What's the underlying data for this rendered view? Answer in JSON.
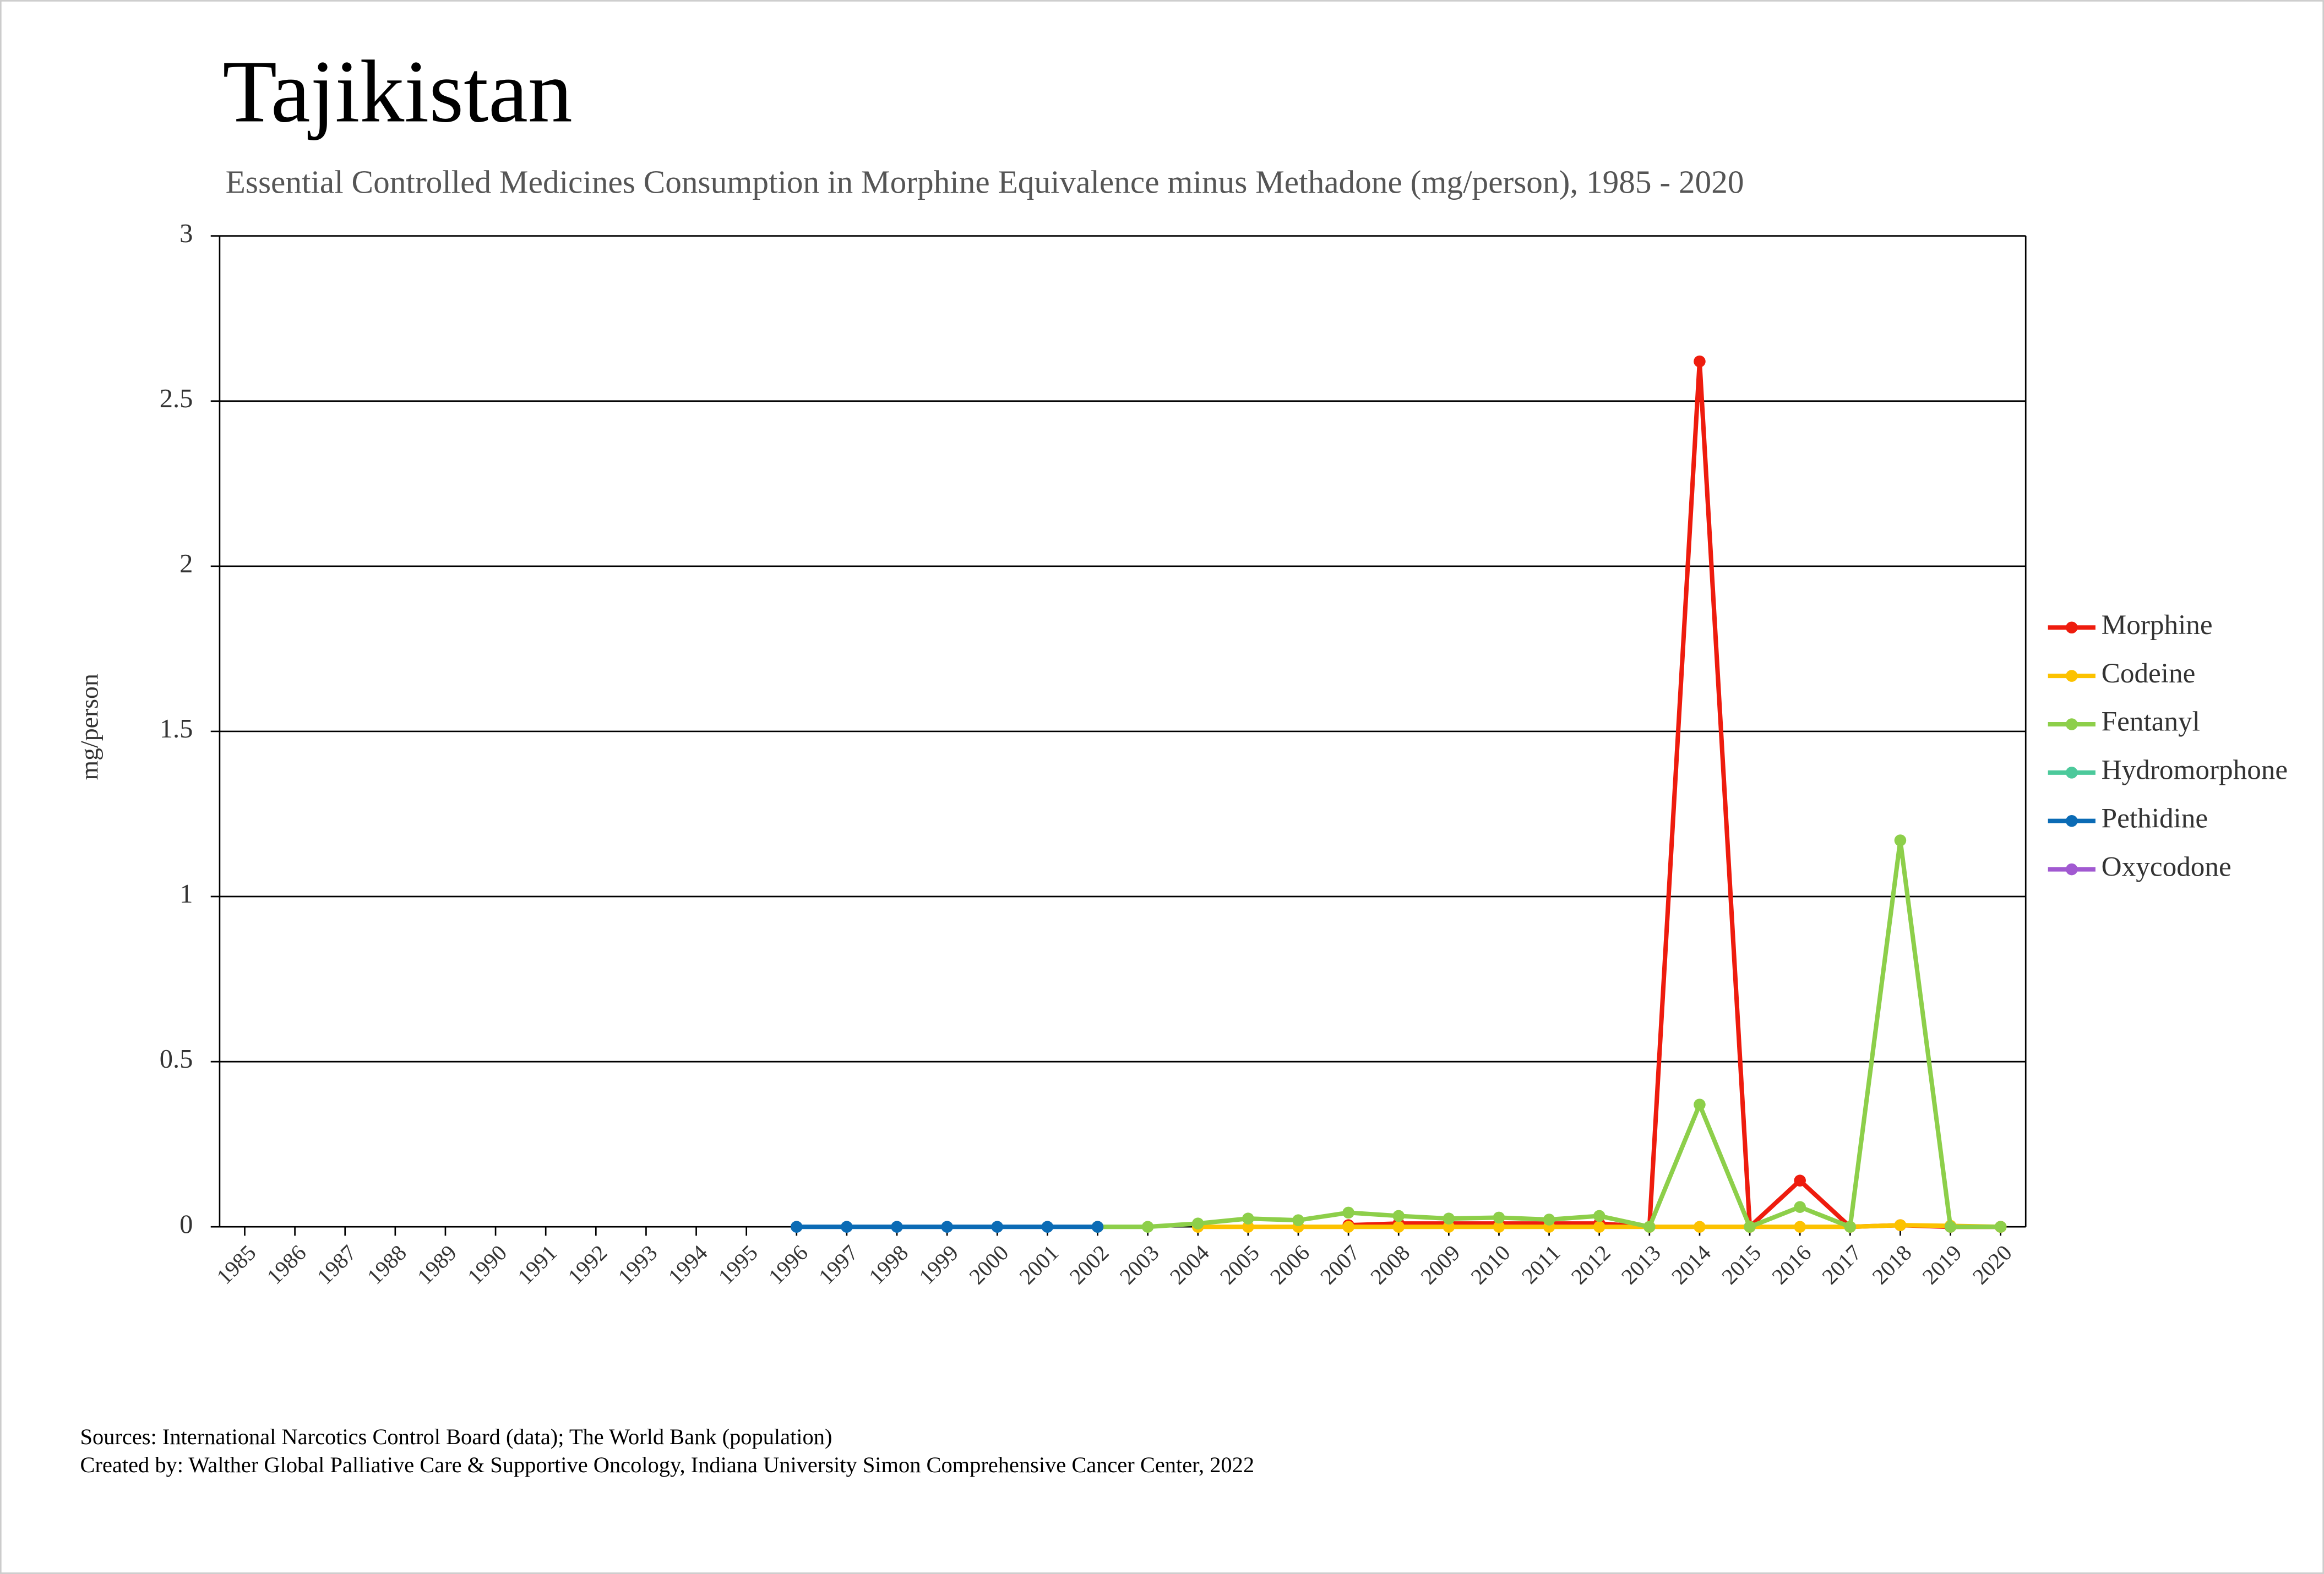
{
  "chart_data": {
    "type": "line",
    "title": "Tajikistan",
    "subtitle": "Essential Controlled Medicines Consumption in Morphine Equivalence minus Methadone (mg/person), 1985 - 2020",
    "y_label": "mg/person",
    "footer": [
      "Sources: International Narcotics Control Board (data); The World Bank (population)",
      "Created by: Walther Global Palliative Care & Supportive Oncology, Indiana University Simon Comprehensive Cancer Center, 2022"
    ],
    "categories": [
      "1985",
      "1986",
      "1987",
      "1988",
      "1989",
      "1990",
      "1991",
      "1992",
      "1993",
      "1994",
      "1995",
      "1996",
      "1997",
      "1998",
      "1999",
      "2000",
      "2001",
      "2002",
      "2003",
      "2004",
      "2005",
      "2006",
      "2007",
      "2008",
      "2009",
      "2010",
      "2011",
      "2012",
      "2013",
      "2014",
      "2015",
      "2016",
      "2017",
      "2018",
      "2019",
      "2020"
    ],
    "series": [
      {
        "name": "Morphine",
        "color": "#ee1c0e",
        "values": [
          null,
          null,
          null,
          null,
          null,
          null,
          null,
          null,
          null,
          null,
          null,
          null,
          null,
          null,
          null,
          null,
          null,
          null,
          null,
          null,
          null,
          null,
          0.005,
          0.01,
          0.01,
          0.01,
          0.01,
          0.01,
          0,
          2.62,
          0,
          0.14,
          0,
          0.005,
          0,
          0
        ]
      },
      {
        "name": "Codeine",
        "color": "#fcc200",
        "values": [
          null,
          null,
          null,
          null,
          null,
          null,
          null,
          null,
          null,
          null,
          null,
          null,
          null,
          null,
          null,
          null,
          null,
          null,
          null,
          0,
          0,
          0,
          0,
          0,
          0,
          0,
          0,
          0,
          0,
          0,
          0,
          0,
          0,
          0.005,
          0.003,
          0
        ]
      },
      {
        "name": "Fentanyl",
        "color": "#8dcf4a",
        "values": [
          null,
          null,
          null,
          null,
          null,
          null,
          null,
          null,
          null,
          null,
          null,
          null,
          null,
          null,
          null,
          null,
          null,
          0,
          0,
          0.01,
          0.025,
          0.02,
          0.043,
          0.033,
          0.025,
          0.028,
          0.022,
          0.033,
          0,
          0.37,
          0,
          0.06,
          0,
          1.17,
          0,
          0
        ]
      },
      {
        "name": "Hydromorphone",
        "color": "#4cc99b",
        "values": [
          null,
          null,
          null,
          null,
          null,
          null,
          null,
          null,
          null,
          null,
          null,
          null,
          null,
          null,
          null,
          null,
          null,
          null,
          null,
          null,
          null,
          null,
          null,
          null,
          null,
          null,
          null,
          null,
          null,
          null,
          null,
          null,
          null,
          null,
          null,
          null
        ]
      },
      {
        "name": "Pethidine",
        "color": "#0b6bb5",
        "values": [
          null,
          null,
          null,
          null,
          null,
          null,
          null,
          null,
          null,
          null,
          null,
          0,
          0,
          0,
          0,
          0,
          0,
          0,
          null,
          null,
          null,
          null,
          null,
          null,
          null,
          null,
          null,
          null,
          null,
          null,
          null,
          null,
          null,
          null,
          null,
          null
        ]
      },
      {
        "name": "Oxycodone",
        "color": "#a159d1",
        "values": [
          null,
          null,
          null,
          null,
          null,
          null,
          null,
          null,
          null,
          null,
          null,
          null,
          null,
          null,
          null,
          null,
          null,
          null,
          null,
          null,
          null,
          null,
          null,
          null,
          null,
          null,
          null,
          null,
          null,
          null,
          null,
          null,
          null,
          null,
          null,
          null
        ]
      }
    ],
    "ylim": [
      0,
      3
    ],
    "yticks": [
      0,
      0.5,
      1,
      1.5,
      2,
      2.5,
      3
    ],
    "grid": true,
    "legend": "right"
  }
}
